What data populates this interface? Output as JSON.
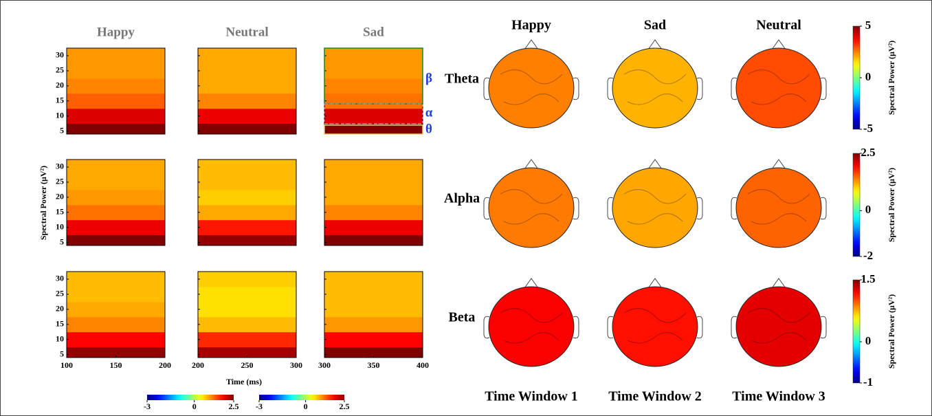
{
  "left": {
    "titles": [
      "Happy",
      "Neutral",
      "Sad"
    ],
    "y_label": "Spectral Power (µV²)",
    "x_label": "Time (ms)",
    "ylim": [
      4,
      32.5
    ],
    "yticks": [
      5,
      10,
      15,
      20,
      25,
      30
    ],
    "frequencies": [
      5,
      10,
      15,
      20,
      25,
      30
    ],
    "clim": [
      -3,
      2.5
    ],
    "columns": [
      {
        "xlim": [
          100,
          200
        ],
        "xticks": [
          100,
          150,
          200
        ],
        "rows": [
          [
            2.5,
            2.0,
            1.3,
            1.1,
            1.0,
            1.0
          ],
          [
            2.5,
            1.9,
            1.2,
            1.0,
            0.9,
            0.9
          ],
          [
            2.4,
            1.8,
            1.1,
            0.9,
            0.8,
            0.8
          ]
        ]
      },
      {
        "xlim": [
          200,
          300
        ],
        "xticks": [
          200,
          250,
          300
        ],
        "rows": [
          [
            2.5,
            1.9,
            1.1,
            0.9,
            0.9,
            0.9
          ],
          [
            2.4,
            1.7,
            0.9,
            0.7,
            0.8,
            0.8
          ],
          [
            2.3,
            1.6,
            0.8,
            0.6,
            0.6,
            0.7
          ]
        ]
      },
      {
        "xlim": [
          300,
          400
        ],
        "xticks": [
          300,
          350,
          400
        ],
        "rows": [
          [
            2.5,
            2.0,
            1.2,
            1.1,
            1.0,
            1.0
          ],
          [
            2.5,
            1.9,
            1.1,
            0.9,
            0.9,
            0.9
          ],
          [
            2.5,
            1.8,
            1.0,
            0.8,
            0.8,
            0.8
          ]
        ]
      }
    ],
    "bands": [
      "β",
      "α",
      "θ"
    ],
    "colorbars": [
      {
        "ticks": [
          -3,
          0,
          2.5
        ]
      },
      {
        "ticks": [
          -3,
          0,
          2.5
        ]
      }
    ]
  },
  "right": {
    "titles": [
      "Happy",
      "Sad",
      "Neutral"
    ],
    "colorbar_label": "Spectral Power (µV²)",
    "rows": [
      {
        "label": "Theta",
        "clim": [
          -5,
          5
        ],
        "ticks": [
          5,
          0,
          -5
        ],
        "values": [
          2.5,
          2.0,
          3.0
        ]
      },
      {
        "label": "Alpha",
        "clim": [
          -2,
          2.5
        ],
        "ticks": [
          2.5,
          0,
          -2
        ],
        "values": [
          1.4,
          1.2,
          1.5
        ]
      },
      {
        "label": "Beta",
        "clim": [
          -1,
          1.5
        ],
        "ticks": [
          1.5,
          0,
          -1
        ],
        "values": [
          1.2,
          1.15,
          1.25
        ]
      }
    ],
    "windows": [
      "Time Window 1",
      "Time Window 2",
      "Time Window 3"
    ]
  }
}
